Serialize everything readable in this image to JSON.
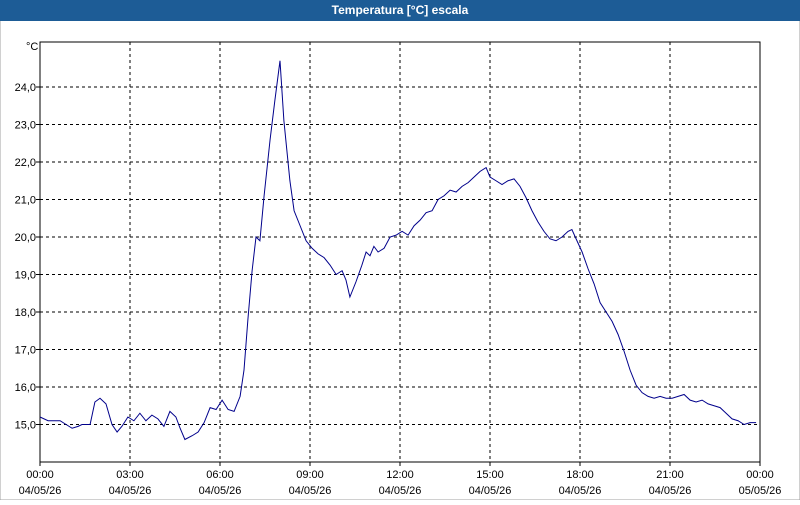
{
  "chart_data": {
    "type": "line",
    "title": "Temperatura [°C] escala",
    "y_unit": "°C",
    "x": [
      0,
      0.27,
      0.67,
      0.87,
      1.07,
      1.27,
      1.4,
      1.67,
      1.83,
      2.0,
      2.2,
      2.4,
      2.57,
      2.73,
      2.93,
      3.13,
      3.33,
      3.53,
      3.73,
      3.93,
      4.13,
      4.33,
      4.53,
      4.67,
      4.83,
      5.07,
      5.27,
      5.47,
      5.67,
      5.87,
      6.07,
      6.27,
      6.47,
      6.67,
      6.8,
      6.93,
      7.07,
      7.2,
      7.33,
      7.47,
      7.67,
      7.83,
      8.0,
      8.13,
      8.33,
      8.47,
      8.67,
      8.87,
      9.07,
      9.27,
      9.47,
      9.67,
      9.87,
      10.07,
      10.2,
      10.33,
      10.53,
      10.73,
      10.87,
      11.0,
      11.13,
      11.27,
      11.47,
      11.67,
      11.87,
      12.07,
      12.27,
      12.47,
      12.67,
      12.87,
      13.07,
      13.27,
      13.47,
      13.67,
      13.87,
      14.07,
      14.27,
      14.47,
      14.67,
      14.87,
      15.0,
      15.2,
      15.4,
      15.6,
      15.8,
      16.0,
      16.2,
      16.4,
      16.6,
      16.8,
      17.0,
      17.2,
      17.4,
      17.6,
      17.73,
      17.87,
      18.07,
      18.27,
      18.47,
      18.67,
      18.87,
      19.07,
      19.27,
      19.47,
      19.67,
      19.87,
      20.07,
      20.27,
      20.47,
      20.67,
      20.87,
      21.07,
      21.27,
      21.47,
      21.67,
      21.87,
      22.07,
      22.27,
      22.47,
      22.67,
      22.87,
      23.07,
      23.27,
      23.47,
      23.67,
      23.87
    ],
    "series": [
      {
        "name": "Temperatura",
        "color": "#00008b",
        "values": [
          15.2,
          15.1,
          15.1,
          15.0,
          14.9,
          14.95,
          15.0,
          15.0,
          15.6,
          15.7,
          15.55,
          15.0,
          14.8,
          14.95,
          15.2,
          15.1,
          15.3,
          15.1,
          15.25,
          15.15,
          14.95,
          15.35,
          15.2,
          14.9,
          14.6,
          14.7,
          14.8,
          15.05,
          15.45,
          15.4,
          15.65,
          15.4,
          15.35,
          15.75,
          16.45,
          17.8,
          19.1,
          20.0,
          19.9,
          21.1,
          22.6,
          23.65,
          24.7,
          23.1,
          21.5,
          20.7,
          20.3,
          19.9,
          19.7,
          19.55,
          19.45,
          19.25,
          19.0,
          19.1,
          18.85,
          18.4,
          18.8,
          19.25,
          19.6,
          19.5,
          19.75,
          19.6,
          19.7,
          20.0,
          20.05,
          20.15,
          20.05,
          20.3,
          20.45,
          20.65,
          20.7,
          21.0,
          21.1,
          21.25,
          21.2,
          21.35,
          21.45,
          21.6,
          21.75,
          21.85,
          21.6,
          21.5,
          21.4,
          21.5,
          21.55,
          21.35,
          21.05,
          20.7,
          20.4,
          20.15,
          19.95,
          19.9,
          20.0,
          20.15,
          20.2,
          19.95,
          19.6,
          19.15,
          18.75,
          18.25,
          18.0,
          17.75,
          17.4,
          16.95,
          16.45,
          16.05,
          15.85,
          15.75,
          15.7,
          15.75,
          15.7,
          15.7,
          15.75,
          15.8,
          15.65,
          15.6,
          15.65,
          15.55,
          15.5,
          15.45,
          15.3,
          15.15,
          15.1,
          15.0,
          15.05,
          15.05
        ]
      }
    ],
    "xlim": [
      0,
      24
    ],
    "xticks": [
      {
        "value": 0,
        "label": "00:00\n04/05/26"
      },
      {
        "value": 3,
        "label": "03:00\n04/05/26"
      },
      {
        "value": 6,
        "label": "06:00\n04/05/26"
      },
      {
        "value": 9,
        "label": "09:00\n04/05/26"
      },
      {
        "value": 12,
        "label": "12:00\n04/05/26"
      },
      {
        "value": 15,
        "label": "15:00\n04/05/26"
      },
      {
        "value": 18,
        "label": "18:00\n04/05/26"
      },
      {
        "value": 21,
        "label": "21:00\n04/05/26"
      },
      {
        "value": 24,
        "label": "00:00\n05/05/26"
      }
    ],
    "ylim": [
      14.0,
      25.2
    ],
    "yticks": [
      {
        "value": 15,
        "label": "15,0"
      },
      {
        "value": 16,
        "label": "16,0"
      },
      {
        "value": 17,
        "label": "17,0"
      },
      {
        "value": 18,
        "label": "18,0"
      },
      {
        "value": 19,
        "label": "19,0"
      },
      {
        "value": 20,
        "label": "20,0"
      },
      {
        "value": 21,
        "label": "21,0"
      },
      {
        "value": 22,
        "label": "22,0"
      },
      {
        "value": 23,
        "label": "23,0"
      },
      {
        "value": 24,
        "label": "24,0"
      }
    ],
    "grid": true
  }
}
